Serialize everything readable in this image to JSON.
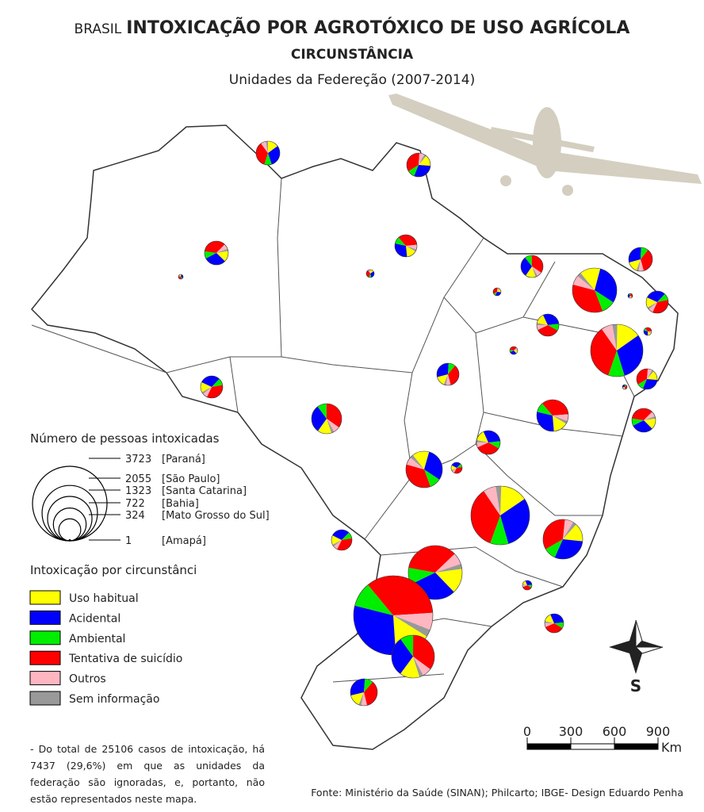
{
  "header": {
    "prefix": "BRASIL",
    "title": "INTOXICAÇÃO POR AGROTÓXICO DE USO AGRÍCOLA",
    "subtitle": "CIRCUNSTÂNCIA",
    "caption": "Unidades da Federeção (2007-2014)"
  },
  "size_legend": {
    "title": "Número de pessoas intoxicadas",
    "entries": [
      {
        "value": 3723,
        "region": "[Paraná]"
      },
      {
        "value": 2055,
        "region": "[São Paulo]"
      },
      {
        "value": 1323,
        "region": "[Santa Catarina]"
      },
      {
        "value": 722,
        "region": "[Bahia]"
      },
      {
        "value": 324,
        "region": "[Mato Grosso do Sul]"
      },
      {
        "value": 1,
        "region": "[Amapá]"
      }
    ]
  },
  "circumstance_legend": {
    "title": "Intoxicação por circunstânci",
    "items": [
      {
        "label": "Uso habitual",
        "color": "#ffff00"
      },
      {
        "label": "Acidental",
        "color": "#0000ff"
      },
      {
        "label": "Ambiental",
        "color": "#00ee00"
      },
      {
        "label": "Tentativa de suicídio",
        "color": "#ff0000"
      },
      {
        "label": "Outros",
        "color": "#ffb6c1"
      },
      {
        "label": "Sem informação",
        "color": "#999999"
      }
    ]
  },
  "scale_bar": {
    "ticks": [
      0,
      300,
      600,
      900
    ],
    "unit": "Km"
  },
  "compass": {
    "label": "S"
  },
  "note": "- Do total de 25106 casos de intoxicação, há 7437 (29,6%) em que as unidades da federação são ignoradas, e, portanto, não estão representados neste mapa.",
  "source": "Fonte: Ministério da Saúde (SINAN); Philcarto; IBGE- Design Eduardo Penha"
}
